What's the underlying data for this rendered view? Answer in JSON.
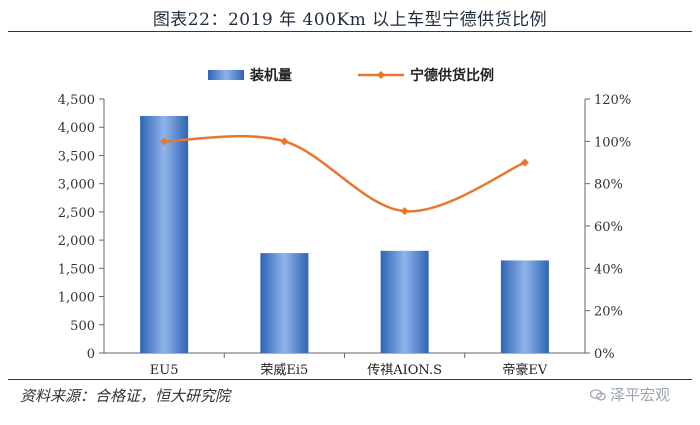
{
  "title": "图表22：2019 年 400Km 以上车型宁德供货比例",
  "source": "资料来源：合格证，恒大研究院",
  "watermark": "泽平宏观",
  "colors": {
    "bar": "#3d78c9",
    "line": "#e8772e",
    "axis": "#555555"
  },
  "chart_data": {
    "type": "bar",
    "title": "图表22：2019 年 400Km 以上车型宁德供货比例",
    "categories": [
      "EU5",
      "荣威Ei5",
      "传祺AION.S",
      "帝豪EV"
    ],
    "series": [
      {
        "name": "装机量",
        "type": "bar",
        "axis": "left",
        "values": [
          4200,
          1770,
          1810,
          1640
        ]
      },
      {
        "name": "宁德供货比例",
        "type": "line",
        "axis": "right",
        "values": [
          100,
          100,
          67,
          90
        ]
      }
    ],
    "ylim": [
      0,
      4500
    ],
    "yticks": [
      "0",
      "500",
      "1,000",
      "1,500",
      "2,000",
      "2,500",
      "3,000",
      "3,500",
      "4,000",
      "4,500"
    ],
    "y2lim": [
      0,
      120
    ],
    "y2ticks": [
      "0%",
      "20%",
      "40%",
      "60%",
      "80%",
      "100%",
      "120%"
    ],
    "legend_position": "top-center"
  }
}
